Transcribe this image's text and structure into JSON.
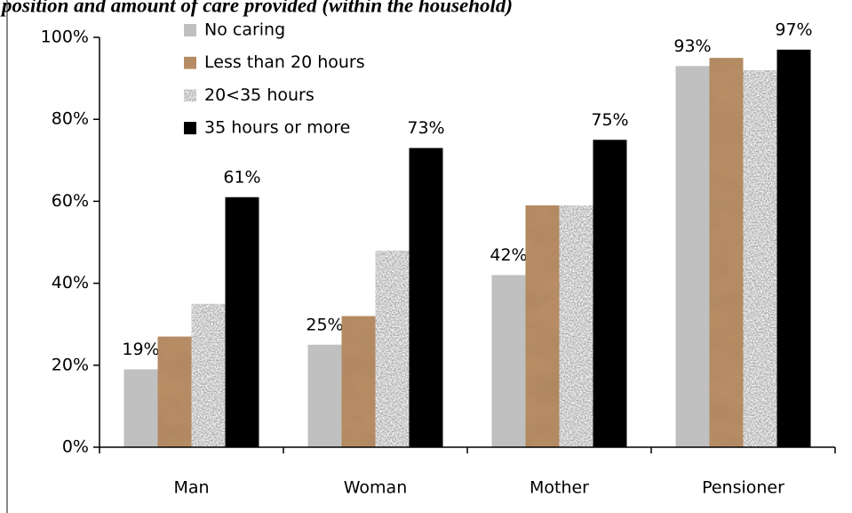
{
  "chart_data": {
    "type": "bar",
    "title": "position and amount of care provided (within the household)",
    "categories": [
      "Man",
      "Woman",
      "Mother",
      "Pensioner"
    ],
    "series": [
      {
        "name": "No caring",
        "color": "#c0c0c0",
        "values": [
          19,
          25,
          42,
          93
        ],
        "value_labels": [
          "19%",
          "25%",
          "42%",
          "93%"
        ]
      },
      {
        "name": "Less than 20 hours",
        "color": "#b98f66",
        "values": [
          27,
          32,
          59,
          95
        ]
      },
      {
        "name": "20<35 hours",
        "color": "#a8a8a8",
        "values": [
          35,
          48,
          59,
          92
        ]
      },
      {
        "name": "35 hours or more",
        "color": "#000000",
        "values": [
          61,
          73,
          75,
          97
        ],
        "value_labels": [
          "61%",
          "73%",
          "75%",
          "97%"
        ]
      }
    ],
    "ylim": [
      0,
      100
    ],
    "yticks": [
      {
        "value": 0,
        "label": "0%"
      },
      {
        "value": 20,
        "label": "20%"
      },
      {
        "value": 40,
        "label": "40%"
      },
      {
        "value": 60,
        "label": "60%"
      },
      {
        "value": 80,
        "label": "80%"
      },
      {
        "value": 100,
        "label": "100%"
      }
    ],
    "legend": "upper left"
  }
}
